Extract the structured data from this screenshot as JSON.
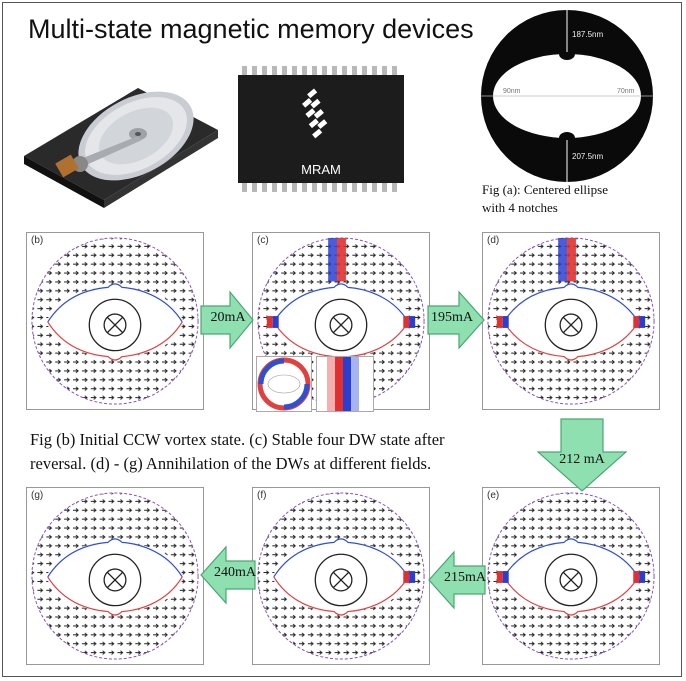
{
  "title": "Multi-state magnetic memory devices",
  "chip": {
    "label": "MRAM"
  },
  "ring": {
    "dims": {
      "top": "187.5nm",
      "bottom": "207.5nm",
      "left": "90nm",
      "right": "70nm"
    }
  },
  "captions": {
    "a": [
      "Fig    (a): Centered ellipse",
      "with 4 notches"
    ],
    "b": [
      "Fig     (b) Initial CCW vortex state. (c) Stable four DW state after",
      "reversal. (d) - (g) Annihilation of the DWs at different fields."
    ]
  },
  "panels": {
    "b": "(b)",
    "c": "(c)",
    "d": "(d)",
    "e": "(e)",
    "f": "(f)",
    "g": "(g)"
  },
  "arrows": {
    "a1": "20mA",
    "a2": "195mA",
    "a3": "212 mA",
    "a4": "215mA",
    "a5": "240mA"
  },
  "colors": {
    "red": "#e03030",
    "blue": "#2a3fd0",
    "arrow_fill": "#8fe0b0",
    "arrow_stroke": "#4aa672"
  }
}
